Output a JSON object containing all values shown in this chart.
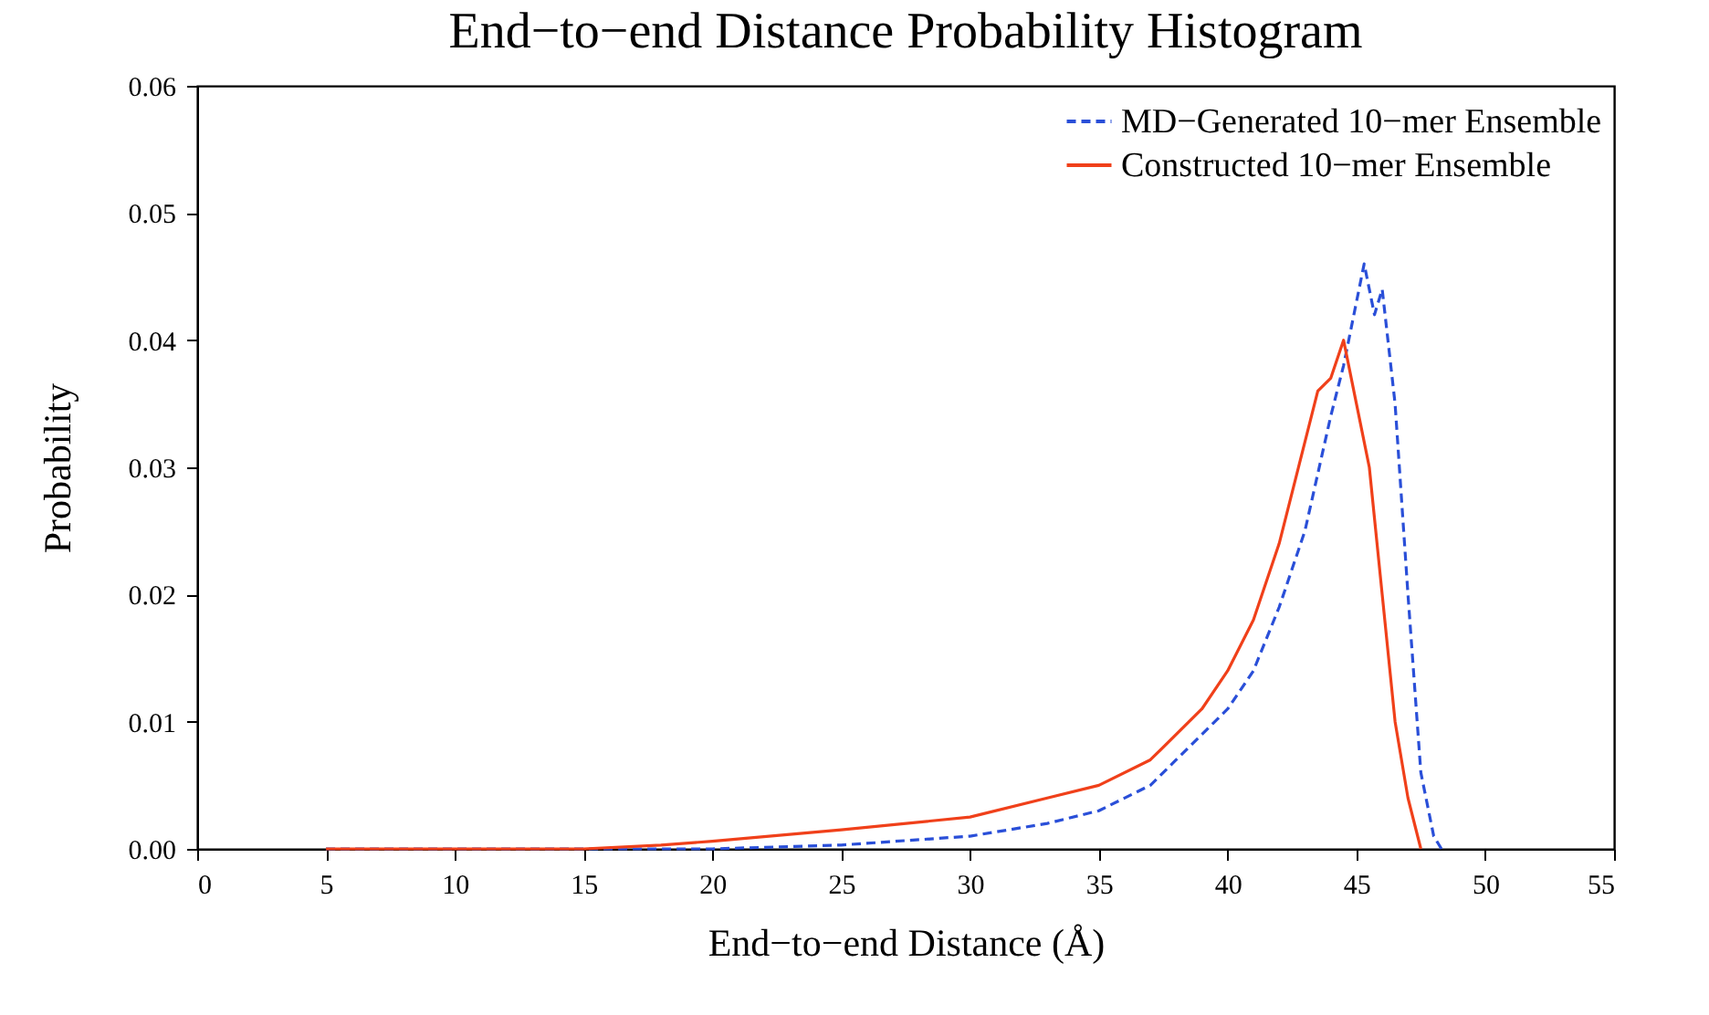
{
  "chart_data": {
    "type": "line",
    "title": "End−to−end Distance Probability Histogram",
    "xlabel": "End−to−end Distance (Å)",
    "ylabel": "Probability",
    "xlim": [
      0,
      55
    ],
    "xticks": [
      0,
      5,
      10,
      15,
      20,
      25,
      30,
      35,
      40,
      45,
      50,
      55
    ],
    "ylim": [
      0,
      0.06
    ],
    "yticks": [
      {
        "value": 0,
        "label": "0.00"
      },
      {
        "value": 0.01,
        "label": "0.01"
      },
      {
        "value": 0.02,
        "label": "0.02"
      },
      {
        "value": 0.03,
        "label": "0.03"
      },
      {
        "value": 0.04,
        "label": "0.04"
      },
      {
        "value": 0.05,
        "label": "0.05"
      },
      {
        "value": 0.06,
        "label": "0.06"
      }
    ],
    "legend": "top right",
    "grid": false,
    "series": [
      {
        "name": "MD−Generated 10−mer Ensemble",
        "color": "#2a4fd8",
        "line_style": "dashed",
        "x": [
          5,
          20,
          25,
          30,
          33,
          35,
          37,
          38,
          39,
          40,
          41,
          42,
          43,
          44,
          44.5,
          45,
          45.3,
          45.7,
          46,
          46.5,
          47,
          47.5,
          48,
          48.3
        ],
        "values": [
          0,
          0,
          0.0003,
          0.001,
          0.002,
          0.003,
          0.005,
          0.007,
          0.009,
          0.011,
          0.014,
          0.019,
          0.025,
          0.034,
          0.038,
          0.043,
          0.046,
          0.042,
          0.044,
          0.035,
          0.02,
          0.006,
          0.001,
          0
        ]
      },
      {
        "name": "Constructed 10−mer Ensemble",
        "color": "#f0401a",
        "line_style": "solid",
        "x": [
          5,
          15,
          18,
          20,
          25,
          30,
          33,
          35,
          37,
          38,
          39,
          40,
          41,
          42,
          43,
          43.5,
          44,
          44.5,
          45,
          45.5,
          46,
          46.5,
          47,
          47.5
        ],
        "values": [
          0,
          0,
          0.0003,
          0.0006,
          0.0015,
          0.0025,
          0.004,
          0.005,
          0.007,
          0.009,
          0.011,
          0.014,
          0.018,
          0.024,
          0.032,
          0.036,
          0.037,
          0.04,
          0.035,
          0.03,
          0.02,
          0.01,
          0.004,
          0
        ]
      }
    ]
  }
}
